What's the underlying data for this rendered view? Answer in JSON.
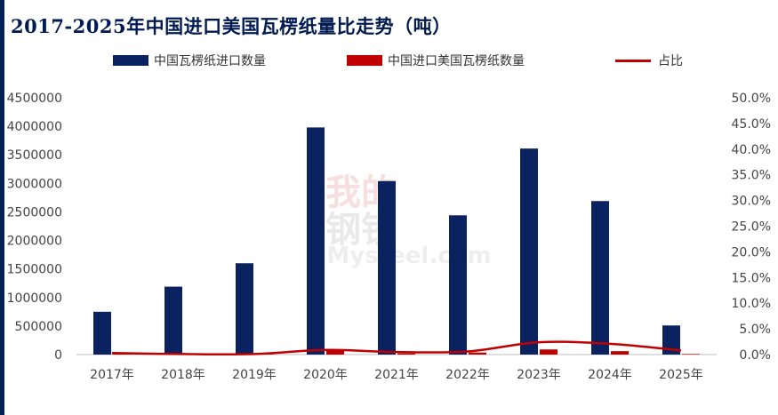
{
  "title": "2017-2025年中国进口美国瓦楞纸量比走势（吨）",
  "watermark": {
    "line1": "我的",
    "line2": "钢铁",
    "line3": "Mysteel.com"
  },
  "colors": {
    "accent": "#001f5b",
    "bar_total": "#0b2260",
    "bar_us": "#c00000",
    "line": "#c00000"
  },
  "chart_data": {
    "type": "bar",
    "categories": [
      "2017年",
      "2018年",
      "2019年",
      "2020年",
      "2021年",
      "2022年",
      "2023年",
      "2024年",
      "2025年"
    ],
    "series": [
      {
        "name": "中国瓦楞纸进口数量",
        "type": "bar",
        "axis": "left",
        "values": [
          750000,
          1190000,
          1600000,
          3980000,
          3040000,
          2440000,
          3610000,
          2690000,
          510000
        ]
      },
      {
        "name": "中国进口美国瓦楞纸数量",
        "type": "bar",
        "axis": "left",
        "values": [
          8000,
          5000,
          6000,
          70000,
          20000,
          35000,
          90000,
          60000,
          10000
        ]
      },
      {
        "name": "占比",
        "type": "line",
        "axis": "right",
        "values": [
          0.003,
          0.001,
          0.001,
          0.009,
          0.005,
          0.006,
          0.024,
          0.021,
          0.008
        ]
      }
    ],
    "y_left": {
      "min": 0,
      "max": 4500000,
      "step": 500000,
      "ticks": [
        "0",
        "500000",
        "1000000",
        "1500000",
        "2000000",
        "2500000",
        "3000000",
        "3500000",
        "4000000",
        "4500000"
      ]
    },
    "y_right": {
      "min": 0,
      "max": 0.5,
      "step": 0.05,
      "ticks": [
        "0.0%",
        "5.0%",
        "10.0%",
        "15.0%",
        "20.0%",
        "25.0%",
        "30.0%",
        "35.0%",
        "40.0%",
        "45.0%",
        "50.0%"
      ]
    },
    "grid": false,
    "legend_position": "top"
  }
}
